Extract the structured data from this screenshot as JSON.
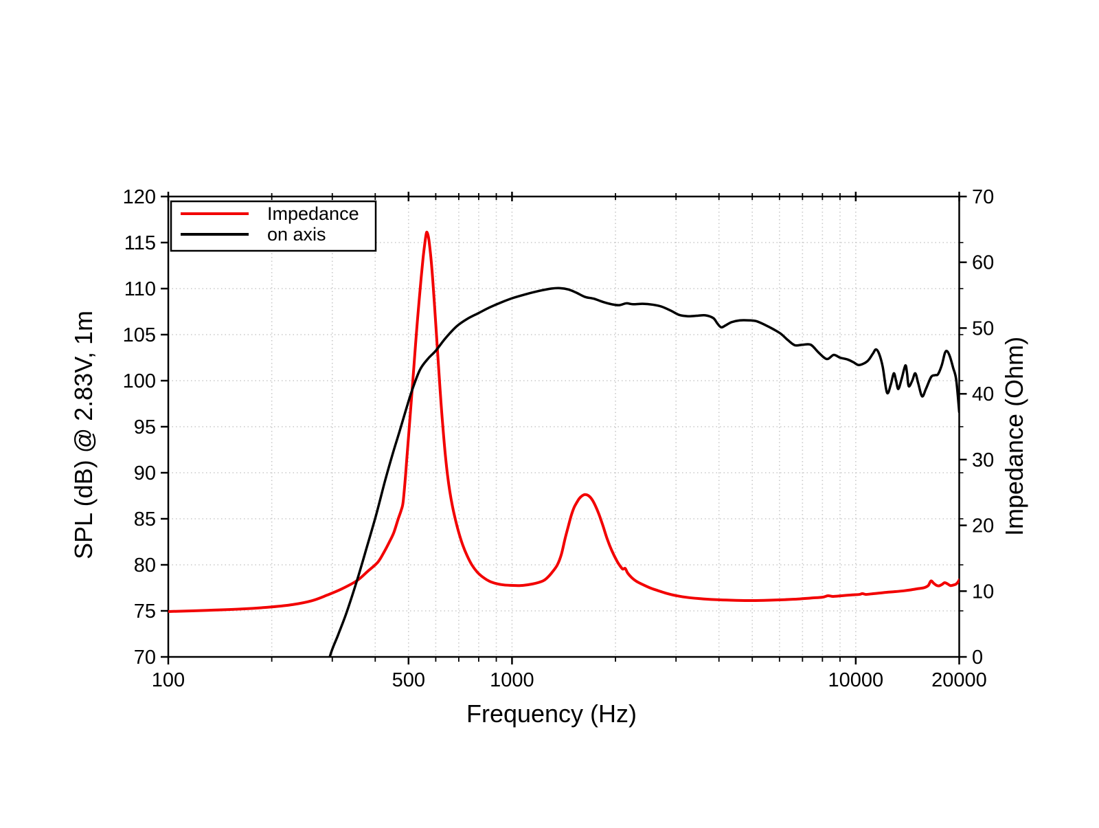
{
  "chart_data": {
    "type": "line",
    "background": "#ffffff",
    "x_axis": {
      "label": "Frequency (Hz)",
      "scale": "log",
      "min": 100,
      "max": 20000,
      "major_ticks": [
        100,
        500,
        1000,
        10000,
        20000
      ],
      "major_tick_labels": [
        "100",
        "500",
        "1000",
        "10000",
        "20000"
      ],
      "minor_ticks": [
        200,
        300,
        400,
        600,
        700,
        800,
        900,
        2000,
        3000,
        4000,
        5000,
        6000,
        7000,
        8000,
        9000
      ]
    },
    "y_left": {
      "label": "SPL (dB) @ 2.83V, 1m",
      "min": 70,
      "max": 120,
      "ticks": [
        70,
        75,
        80,
        85,
        90,
        95,
        100,
        105,
        110,
        115,
        120
      ]
    },
    "y_right": {
      "label": "Impedance (Ohm)",
      "min": 0,
      "max": 70,
      "ticks": [
        0,
        10,
        20,
        30,
        40,
        50,
        60,
        70
      ]
    },
    "grid": {
      "color": "#c8c8c8",
      "style": "dotted"
    },
    "legend": {
      "entries": [
        {
          "label": "Impedance",
          "color": "#f20000"
        },
        {
          "label": "on axis",
          "color": "#000000"
        }
      ]
    },
    "series": [
      {
        "name": "Impedance",
        "axis": "right",
        "color": "#f20000",
        "unit": "Ohm",
        "points": [
          [
            100,
            6.9
          ],
          [
            130,
            7.08
          ],
          [
            165,
            7.3
          ],
          [
            200,
            7.6
          ],
          [
            230,
            7.95
          ],
          [
            262,
            8.55
          ],
          [
            290,
            9.4
          ],
          [
            320,
            10.35
          ],
          [
            354,
            11.6
          ],
          [
            380,
            13.0
          ],
          [
            407,
            14.4
          ],
          [
            425,
            16.0
          ],
          [
            440,
            17.5
          ],
          [
            453,
            18.9
          ],
          [
            466,
            20.9
          ],
          [
            476,
            22.3
          ],
          [
            482,
            23.5
          ],
          [
            489,
            27.0
          ],
          [
            494,
            30.0
          ],
          [
            500,
            33.5
          ],
          [
            506,
            37.0
          ],
          [
            512,
            40.5
          ],
          [
            518,
            44.0
          ],
          [
            524,
            47.5
          ],
          [
            530,
            50.8
          ],
          [
            537,
            54.3
          ],
          [
            544,
            57.6
          ],
          [
            551,
            60.6
          ],
          [
            558,
            63.0
          ],
          [
            563,
            64.35
          ],
          [
            566,
            64.55
          ],
          [
            571,
            63.9
          ],
          [
            575,
            62.8
          ],
          [
            582,
            60.2
          ],
          [
            589,
            56.8
          ],
          [
            596,
            52.9
          ],
          [
            603,
            48.9
          ],
          [
            610,
            44.9
          ],
          [
            617,
            41.0
          ],
          [
            624,
            37.4
          ],
          [
            632,
            33.8
          ],
          [
            640,
            30.6
          ],
          [
            649,
            27.7
          ],
          [
            659,
            25.2
          ],
          [
            671,
            22.9
          ],
          [
            685,
            20.8
          ],
          [
            701,
            18.8
          ],
          [
            719,
            17.0
          ],
          [
            740,
            15.4
          ],
          [
            764,
            14.0
          ],
          [
            792,
            12.9
          ],
          [
            824,
            12.1
          ],
          [
            860,
            11.5
          ],
          [
            900,
            11.15
          ],
          [
            945,
            10.95
          ],
          [
            990,
            10.88
          ],
          [
            1060,
            10.85
          ],
          [
            1150,
            11.1
          ],
          [
            1230,
            11.55
          ],
          [
            1270,
            12.1
          ],
          [
            1310,
            12.9
          ],
          [
            1355,
            14.0
          ],
          [
            1392,
            15.6
          ],
          [
            1427,
            18.0
          ],
          [
            1457,
            19.8
          ],
          [
            1487,
            21.5
          ],
          [
            1515,
            22.7
          ],
          [
            1540,
            23.4
          ],
          [
            1570,
            24.1
          ],
          [
            1600,
            24.5
          ],
          [
            1630,
            24.68
          ],
          [
            1665,
            24.55
          ],
          [
            1700,
            24.1
          ],
          [
            1740,
            23.2
          ],
          [
            1790,
            21.7
          ],
          [
            1840,
            19.9
          ],
          [
            1890,
            18.0
          ],
          [
            1950,
            16.2
          ],
          [
            2021,
            14.55
          ],
          [
            2065,
            13.8
          ],
          [
            2100,
            13.35
          ],
          [
            2135,
            13.45
          ],
          [
            2170,
            12.75
          ],
          [
            2230,
            12.05
          ],
          [
            2300,
            11.5
          ],
          [
            2400,
            11.0
          ],
          [
            2520,
            10.5
          ],
          [
            2650,
            10.1
          ],
          [
            2800,
            9.7
          ],
          [
            3000,
            9.32
          ],
          [
            3250,
            9.03
          ],
          [
            3600,
            8.82
          ],
          [
            4000,
            8.68
          ],
          [
            4500,
            8.6
          ],
          [
            5000,
            8.57
          ],
          [
            5600,
            8.62
          ],
          [
            6200,
            8.7
          ],
          [
            6800,
            8.8
          ],
          [
            7400,
            8.95
          ],
          [
            8000,
            9.08
          ],
          [
            8300,
            9.3
          ],
          [
            8600,
            9.2
          ],
          [
            9100,
            9.3
          ],
          [
            9700,
            9.42
          ],
          [
            10250,
            9.5
          ],
          [
            10450,
            9.62
          ],
          [
            10700,
            9.5
          ],
          [
            11100,
            9.58
          ],
          [
            11700,
            9.7
          ],
          [
            12300,
            9.82
          ],
          [
            13000,
            9.92
          ],
          [
            13800,
            10.05
          ],
          [
            14500,
            10.2
          ],
          [
            15200,
            10.38
          ],
          [
            15800,
            10.52
          ],
          [
            16250,
            10.85
          ],
          [
            16550,
            11.55
          ],
          [
            16850,
            11.2
          ],
          [
            17150,
            10.9
          ],
          [
            17450,
            10.8
          ],
          [
            17800,
            11.0
          ],
          [
            18150,
            11.28
          ],
          [
            18500,
            11.1
          ],
          [
            18850,
            10.85
          ],
          [
            19150,
            10.9
          ],
          [
            19550,
            11.05
          ],
          [
            19850,
            11.4
          ],
          [
            20000,
            11.7
          ]
        ]
      },
      {
        "name": "on axis",
        "axis": "left",
        "color": "#000000",
        "unit": "dB",
        "points": [
          [
            280,
            66
          ],
          [
            295,
            70
          ],
          [
            312,
            72.4
          ],
          [
            330,
            74.8
          ],
          [
            354,
            78.3
          ],
          [
            378,
            81.9
          ],
          [
            403,
            85.5
          ],
          [
            427,
            89.1
          ],
          [
            450,
            92.1
          ],
          [
            470,
            94.4
          ],
          [
            492,
            96.9
          ],
          [
            513,
            99.05
          ],
          [
            540,
            101.2
          ],
          [
            570,
            102.4
          ],
          [
            600,
            103.25
          ],
          [
            640,
            104.6
          ],
          [
            690,
            105.9
          ],
          [
            740,
            106.7
          ],
          [
            800,
            107.35
          ],
          [
            860,
            107.95
          ],
          [
            930,
            108.5
          ],
          [
            1010,
            109.0
          ],
          [
            1100,
            109.4
          ],
          [
            1200,
            109.75
          ],
          [
            1300,
            110.0
          ],
          [
            1380,
            110.05
          ],
          [
            1460,
            109.9
          ],
          [
            1540,
            109.55
          ],
          [
            1630,
            109.1
          ],
          [
            1730,
            108.9
          ],
          [
            1840,
            108.55
          ],
          [
            1950,
            108.3
          ],
          [
            2050,
            108.2
          ],
          [
            2150,
            108.4
          ],
          [
            2250,
            108.3
          ],
          [
            2400,
            108.35
          ],
          [
            2570,
            108.25
          ],
          [
            2720,
            108.05
          ],
          [
            2900,
            107.6
          ],
          [
            3060,
            107.15
          ],
          [
            3250,
            107.0
          ],
          [
            3450,
            107.05
          ],
          [
            3650,
            107.1
          ],
          [
            3850,
            106.8
          ],
          [
            3960,
            106.2
          ],
          [
            4060,
            105.8
          ],
          [
            4180,
            106.0
          ],
          [
            4350,
            106.35
          ],
          [
            4600,
            106.55
          ],
          [
            4900,
            106.55
          ],
          [
            5150,
            106.45
          ],
          [
            5450,
            106.05
          ],
          [
            5750,
            105.6
          ],
          [
            6050,
            105.1
          ],
          [
            6350,
            104.4
          ],
          [
            6650,
            103.85
          ],
          [
            7000,
            103.9
          ],
          [
            7400,
            103.9
          ],
          [
            7800,
            103.05
          ],
          [
            8240,
            102.35
          ],
          [
            8630,
            102.8
          ],
          [
            9000,
            102.5
          ],
          [
            9470,
            102.3
          ],
          [
            9850,
            102.0
          ],
          [
            10230,
            101.7
          ],
          [
            10800,
            102.1
          ],
          [
            11200,
            102.9
          ],
          [
            11450,
            103.4
          ],
          [
            11700,
            102.9
          ],
          [
            11980,
            101.5
          ],
          [
            12330,
            98.7
          ],
          [
            12650,
            99.6
          ],
          [
            12900,
            100.8
          ],
          [
            13100,
            100.0
          ],
          [
            13300,
            99.1
          ],
          [
            13600,
            100.2
          ],
          [
            13940,
            101.65
          ],
          [
            14100,
            100.8
          ],
          [
            14260,
            99.4
          ],
          [
            14600,
            100.0
          ],
          [
            14900,
            100.8
          ],
          [
            15200,
            99.7
          ],
          [
            15600,
            98.3
          ],
          [
            16000,
            99.1
          ],
          [
            16570,
            100.4
          ],
          [
            17000,
            100.6
          ],
          [
            17350,
            100.7
          ],
          [
            17800,
            101.7
          ],
          [
            18170,
            103.0
          ],
          [
            18450,
            103.2
          ],
          [
            18800,
            102.6
          ],
          [
            19200,
            101.4
          ],
          [
            19600,
            100.1
          ],
          [
            20000,
            96.6
          ]
        ]
      }
    ]
  }
}
